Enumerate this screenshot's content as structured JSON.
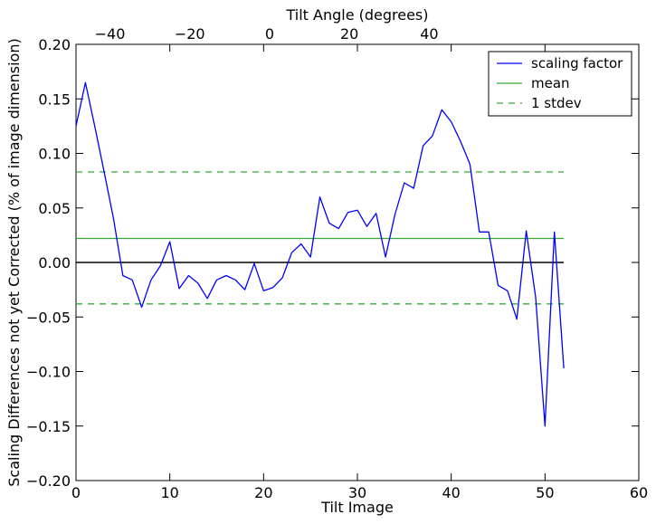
{
  "chart_data": {
    "type": "line",
    "xlabel": "Tilt Image",
    "ylabel": "Scaling Differences not yet Corrected (% of image dimension)",
    "x2label": "Tilt Angle (degrees)",
    "xlim": [
      0,
      60
    ],
    "ylim": [
      -0.2,
      0.2
    ],
    "x2lim": [
      -48.5,
      92.5
    ],
    "x_ticks": [
      "0",
      "10",
      "20",
      "30",
      "40",
      "50",
      "60"
    ],
    "y_ticks": [
      "−0.20",
      "−0.15",
      "−0.10",
      "−0.05",
      "0.00",
      "0.05",
      "0.10",
      "0.15",
      "0.20"
    ],
    "x2_ticks": [
      "−40",
      "−20",
      "0",
      "20",
      "40"
    ],
    "legend_position": "top-right",
    "series": [
      {
        "name": "scaling factor",
        "color": "#0000ff",
        "style": "solid",
        "x": [
          0,
          1,
          2,
          3,
          4,
          5,
          6,
          7,
          8,
          9,
          10,
          11,
          12,
          13,
          14,
          15,
          16,
          17,
          18,
          19,
          20,
          21,
          22,
          23,
          24,
          25,
          26,
          27,
          28,
          29,
          30,
          31,
          32,
          33,
          34,
          35,
          36,
          37,
          38,
          39,
          40,
          41,
          42,
          43,
          44,
          45,
          46,
          47,
          48,
          49,
          50,
          51,
          52
        ],
        "values": [
          0.125,
          0.165,
          0.125,
          0.083,
          0.04,
          -0.012,
          -0.016,
          -0.041,
          -0.016,
          -0.003,
          0.019,
          -0.024,
          -0.012,
          -0.019,
          -0.033,
          -0.016,
          -0.012,
          -0.016,
          -0.025,
          -0.001,
          -0.026,
          -0.023,
          -0.014,
          0.009,
          0.017,
          0.005,
          0.06,
          0.036,
          0.031,
          0.046,
          0.048,
          0.033,
          0.045,
          0.005,
          0.044,
          0.073,
          0.068,
          0.107,
          0.116,
          0.14,
          0.129,
          0.111,
          0.09,
          0.028,
          0.028,
          -0.021,
          -0.026,
          -0.052,
          0.029,
          -0.032,
          -0.15,
          0.028,
          -0.097
        ]
      },
      {
        "name": "mean",
        "color": "#33aa33",
        "style": "solid",
        "x": [
          0,
          52
        ],
        "values": [
          0.022,
          0.022
        ]
      },
      {
        "name": "1 stdev",
        "color": "#33aa33",
        "style": "dashed",
        "x": [
          0,
          52
        ],
        "values": [
          0.083,
          0.083
        ],
        "lower_values": [
          -0.038,
          -0.038
        ]
      }
    ],
    "zero_line": {
      "color": "#000000",
      "x": [
        0,
        52
      ],
      "value": 0
    }
  }
}
